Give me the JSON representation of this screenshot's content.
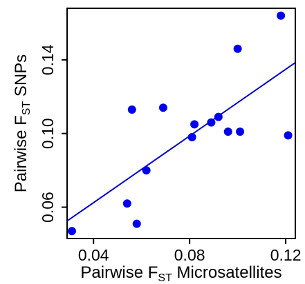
{
  "chart_data": {
    "type": "scatter",
    "title": "",
    "xlabel": {
      "prefix": "Pairwise F",
      "sub": "ST",
      "suffix": " Microsatellites"
    },
    "ylabel": {
      "prefix": "Pairwise F",
      "sub": "ST",
      "suffix": " SNPs"
    },
    "xlim": [
      0.029,
      0.124
    ],
    "ylim": [
      0.043,
      0.168
    ],
    "xticks": [
      0.04,
      0.08,
      0.12
    ],
    "xtick_labels": [
      "0.04",
      "0.08",
      "0.12"
    ],
    "yticks": [
      0.06,
      0.1,
      0.14
    ],
    "ytick_labels": [
      "0.06",
      "0.10",
      "0.14"
    ],
    "grid": false,
    "legend": "none",
    "point_color": "#0000ee",
    "line_color": "#0000cc",
    "points": [
      {
        "x": 0.031,
        "y": 0.047
      },
      {
        "x": 0.054,
        "y": 0.062
      },
      {
        "x": 0.056,
        "y": 0.113
      },
      {
        "x": 0.058,
        "y": 0.051
      },
      {
        "x": 0.062,
        "y": 0.08
      },
      {
        "x": 0.069,
        "y": 0.114
      },
      {
        "x": 0.081,
        "y": 0.098
      },
      {
        "x": 0.082,
        "y": 0.105
      },
      {
        "x": 0.089,
        "y": 0.106
      },
      {
        "x": 0.092,
        "y": 0.109
      },
      {
        "x": 0.096,
        "y": 0.101
      },
      {
        "x": 0.1,
        "y": 0.146
      },
      {
        "x": 0.101,
        "y": 0.101
      },
      {
        "x": 0.118,
        "y": 0.164
      },
      {
        "x": 0.121,
        "y": 0.099
      }
    ],
    "regression_line": {
      "x": [
        0.029,
        0.124
      ],
      "y": [
        0.0525,
        0.1385
      ]
    }
  }
}
